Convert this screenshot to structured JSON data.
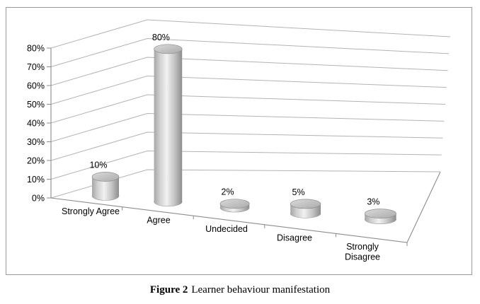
{
  "figure": {
    "caption_label": "Figure 2",
    "caption_text": "Learner behaviour manifestation"
  },
  "chart_data": {
    "type": "bar",
    "subtype": "3d-cylinder",
    "title": "",
    "xlabel": "",
    "ylabel": "",
    "categories": [
      "Strongly Agree",
      "Agree",
      "Undecided",
      "Disagree",
      "Strongly Disagree"
    ],
    "values": [
      10,
      80,
      2,
      5,
      3
    ],
    "data_labels": [
      "10%",
      "80%",
      "2%",
      "5%",
      "3%"
    ],
    "ylim": [
      0,
      80
    ],
    "ytick_step": 10,
    "ytick_labels": [
      "0%",
      "10%",
      "20%",
      "30%",
      "40%",
      "50%",
      "60%",
      "70%",
      "80%"
    ],
    "grid": true,
    "legend": "none",
    "colors": {
      "cylinder_edge_dark": "#8d8d8d",
      "cylinder_highlight": "#f1f1f1",
      "cylinder_top": "#c2c2c2",
      "gridline": "#b3b3b3",
      "axis": "#8c8c8c",
      "frame_border": "#999999",
      "text": "#000000",
      "background": "#ffffff"
    }
  }
}
